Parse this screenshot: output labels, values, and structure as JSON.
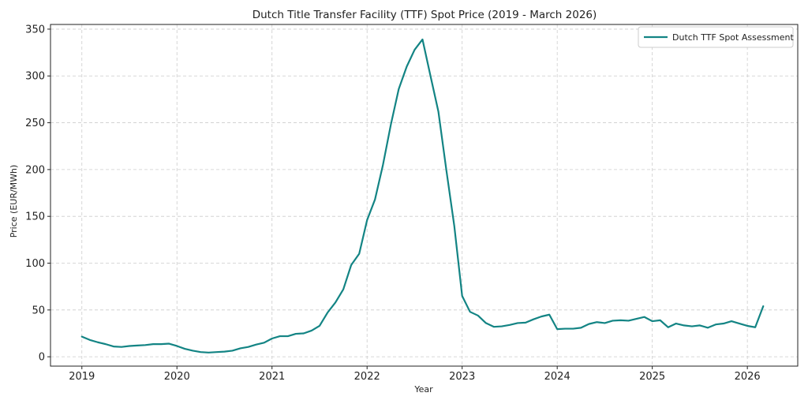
{
  "colors": {
    "series": "#138484",
    "grid": "#cccccc",
    "axis": "#222222",
    "legend_border": "#cccccc",
    "background": "#ffffff"
  },
  "chart_data": {
    "type": "line",
    "title": "Dutch Title Transfer Facility (TTF) Spot Price (2019 - March 2026)",
    "xlabel": "Year",
    "ylabel": "Price (EUR/MWh)",
    "xlim": [
      2018.67,
      2026.53
    ],
    "ylim": [
      -10,
      355
    ],
    "grid": true,
    "legend_position": "top-right",
    "x_ticks": [
      2019,
      2020,
      2021,
      2022,
      2023,
      2024,
      2025,
      2026
    ],
    "x_tick_labels": [
      "2019",
      "2020",
      "2021",
      "2022",
      "2023",
      "2024",
      "2025",
      "2026"
    ],
    "y_ticks": [
      0,
      50,
      100,
      150,
      200,
      250,
      300,
      350
    ],
    "y_tick_labels": [
      "0",
      "50",
      "100",
      "150",
      "200",
      "250",
      "300",
      "350"
    ],
    "series": [
      {
        "name": "Dutch TTF Spot Assessment",
        "color": "#138484",
        "x": [
          2019.0,
          2019.083,
          2019.167,
          2019.25,
          2019.333,
          2019.417,
          2019.5,
          2019.583,
          2019.667,
          2019.75,
          2019.833,
          2019.917,
          2020.0,
          2020.083,
          2020.167,
          2020.25,
          2020.333,
          2020.417,
          2020.5,
          2020.583,
          2020.667,
          2020.75,
          2020.833,
          2020.917,
          2021.0,
          2021.083,
          2021.167,
          2021.25,
          2021.333,
          2021.417,
          2021.5,
          2021.583,
          2021.667,
          2021.75,
          2021.833,
          2021.917,
          2022.0,
          2022.083,
          2022.167,
          2022.25,
          2022.333,
          2022.417,
          2022.5,
          2022.583,
          2022.667,
          2022.75,
          2022.833,
          2022.917,
          2023.0,
          2023.083,
          2023.167,
          2023.25,
          2023.333,
          2023.417,
          2023.5,
          2023.583,
          2023.667,
          2023.75,
          2023.833,
          2023.917,
          2024.0,
          2024.083,
          2024.167,
          2024.25,
          2024.333,
          2024.417,
          2024.5,
          2024.583,
          2024.667,
          2024.75,
          2024.833,
          2024.917,
          2025.0,
          2025.083,
          2025.167,
          2025.25,
          2025.333,
          2025.417,
          2025.5,
          2025.583,
          2025.667,
          2025.75,
          2025.833,
          2025.917,
          2026.0,
          2026.083,
          2026.167
        ],
        "y": [
          21.5,
          18,
          15.5,
          13.5,
          11,
          10.5,
          11.5,
          12,
          12.5,
          13.5,
          13.5,
          14,
          11.5,
          8.5,
          6.5,
          5,
          4.5,
          5,
          5.5,
          6.5,
          9,
          10.5,
          13,
          15,
          19.5,
          22,
          22,
          24.5,
          25,
          28,
          33,
          47,
          58,
          72,
          98,
          110,
          146,
          168,
          205,
          248,
          286,
          310,
          328,
          339,
          300,
          262,
          200,
          140,
          65,
          48,
          44,
          36,
          32,
          32.5,
          34,
          36,
          36.5,
          40,
          43,
          45,
          29.5,
          30,
          30,
          31,
          35,
          37,
          36,
          38.5,
          39,
          38.5,
          40.5,
          42.5,
          38,
          39,
          31.5,
          35.5,
          33.5,
          32.5,
          33.5,
          31,
          34.5,
          35.5,
          38,
          35.5,
          33,
          31.5,
          54
        ]
      }
    ]
  }
}
